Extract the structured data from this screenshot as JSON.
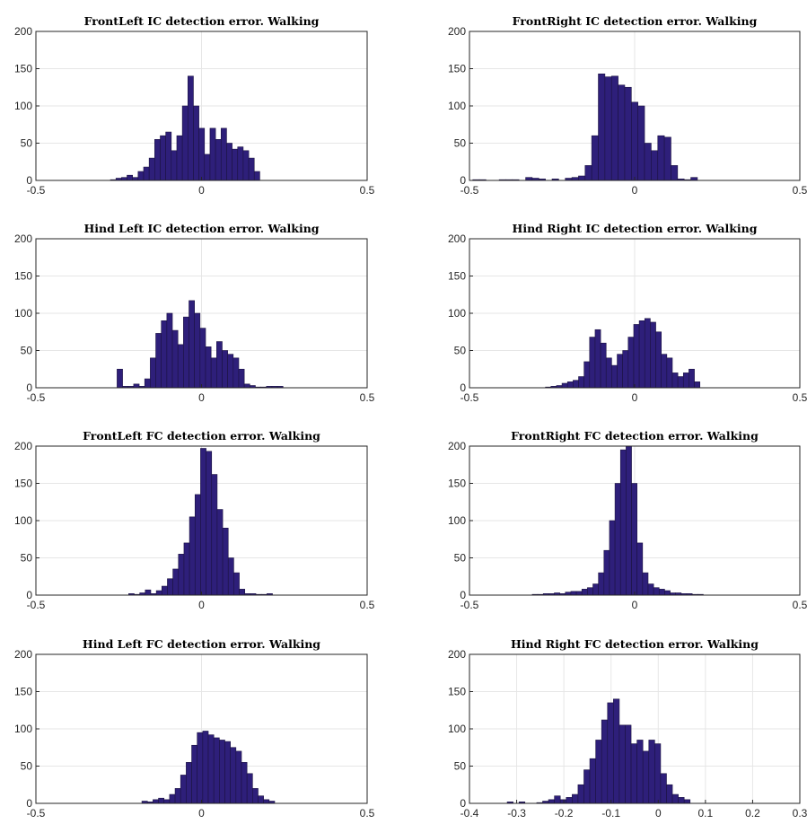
{
  "figure": {
    "colors": {
      "bar": "#2e1f7a",
      "bar_edge": "#1b1240",
      "grid": "#e6e6e6",
      "axis": "#262626"
    }
  },
  "chart_data": [
    {
      "type": "bar",
      "title": "FrontLeft IC detection error. Walking",
      "xlim": [
        -0.5,
        0.5
      ],
      "ylim": [
        0,
        200
      ],
      "xticks": [
        -0.5,
        0,
        0.5
      ],
      "xtick_labels": [
        "-0.5",
        "0",
        "0.5"
      ],
      "yticks": [
        0,
        50,
        100,
        150,
        200
      ],
      "ytick_labels": [
        "0",
        "50",
        "100",
        "150",
        "200"
      ],
      "grid": true,
      "bin_start": -0.275,
      "bin_width": 0.0167,
      "values": [
        1,
        3,
        4,
        7,
        4,
        12,
        18,
        30,
        55,
        60,
        65,
        40,
        60,
        100,
        140,
        100,
        70,
        35,
        70,
        55,
        70,
        50,
        42,
        45,
        40,
        30,
        12
      ]
    },
    {
      "type": "bar",
      "title": "FrontRight IC detection error. Walking",
      "xlim": [
        -0.5,
        0.5
      ],
      "ylim": [
        0,
        200
      ],
      "xticks": [
        -0.5,
        0,
        0.5
      ],
      "xtick_labels": [
        "-0.5",
        "0",
        "0.5"
      ],
      "yticks": [
        0,
        50,
        100,
        150,
        200
      ],
      "ytick_labels": [
        "0",
        "50",
        "100",
        "150",
        "200"
      ],
      "grid": true,
      "bin_start": -0.49,
      "bin_width": 0.02,
      "values": [
        1,
        1,
        0,
        0,
        1,
        1,
        1,
        0,
        4,
        3,
        2,
        0,
        2,
        0,
        3,
        4,
        6,
        20,
        60,
        143,
        139,
        140,
        128,
        125,
        105,
        100,
        50,
        40,
        60,
        58,
        20,
        2,
        1,
        4
      ]
    },
    {
      "type": "bar",
      "title": "Hind Left IC detection error. Walking",
      "xlim": [
        -0.5,
        0.5
      ],
      "ylim": [
        0,
        200
      ],
      "xticks": [
        -0.5,
        0,
        0.5
      ],
      "xtick_labels": [
        "-0.5",
        "0",
        "0.5"
      ],
      "yticks": [
        0,
        50,
        100,
        150,
        200
      ],
      "ytick_labels": [
        "0",
        "50",
        "100",
        "150",
        "200"
      ],
      "grid": true,
      "bin_start": -0.255,
      "bin_width": 0.0167,
      "values": [
        25,
        2,
        2,
        5,
        2,
        12,
        40,
        73,
        90,
        100,
        77,
        58,
        95,
        117,
        100,
        80,
        55,
        40,
        62,
        50,
        45,
        40,
        25,
        5,
        3,
        1,
        1,
        2,
        2,
        2
      ]
    },
    {
      "type": "bar",
      "title": "Hind Right IC detection error. Walking",
      "xlim": [
        -0.5,
        0.5
      ],
      "ylim": [
        0,
        200
      ],
      "xticks": [
        -0.5,
        0,
        0.5
      ],
      "xtick_labels": [
        "-0.5",
        "0",
        "0.5"
      ],
      "yticks": [
        0,
        50,
        100,
        150,
        200
      ],
      "ytick_labels": [
        "0",
        "50",
        "100",
        "150",
        "200"
      ],
      "grid": true,
      "bin_start": -0.27,
      "bin_width": 0.0167,
      "values": [
        1,
        2,
        3,
        6,
        8,
        10,
        15,
        35,
        68,
        78,
        60,
        40,
        30,
        45,
        50,
        68,
        85,
        90,
        93,
        88,
        75,
        45,
        40,
        20,
        15,
        20,
        25,
        8
      ]
    },
    {
      "type": "bar",
      "title": "FrontLeft FC detection error. Walking",
      "xlim": [
        -0.5,
        0.5
      ],
      "ylim": [
        0,
        200
      ],
      "xticks": [
        -0.5,
        0,
        0.5
      ],
      "xtick_labels": [
        "-0.5",
        "0",
        "0.5"
      ],
      "yticks": [
        0,
        50,
        100,
        150,
        200
      ],
      "ytick_labels": [
        "0",
        "50",
        "100",
        "150",
        "200"
      ],
      "grid": true,
      "bin_start": -0.22,
      "bin_width": 0.0167,
      "values": [
        2,
        1,
        3,
        7,
        2,
        6,
        12,
        22,
        35,
        55,
        70,
        105,
        135,
        197,
        193,
        162,
        115,
        90,
        50,
        30,
        8,
        2,
        2,
        1,
        1,
        2
      ]
    },
    {
      "type": "bar",
      "title": "FrontRight FC detection error. Walking",
      "xlim": [
        -0.5,
        0.5
      ],
      "ylim": [
        0,
        200
      ],
      "xticks": [
        -0.5,
        0,
        0.5
      ],
      "xtick_labels": [
        "-0.5",
        "0",
        "0.5"
      ],
      "yticks": [
        0,
        50,
        100,
        150,
        200
      ],
      "ytick_labels": [
        "0",
        "50",
        "100",
        "150",
        "200"
      ],
      "grid": true,
      "bin_start": -0.31,
      "bin_width": 0.0167,
      "values": [
        1,
        1,
        2,
        2,
        3,
        2,
        4,
        5,
        5,
        8,
        10,
        15,
        30,
        60,
        100,
        150,
        195,
        200,
        150,
        70,
        30,
        15,
        10,
        8,
        6,
        3,
        3,
        2,
        2,
        1,
        1
      ]
    },
    {
      "type": "bar",
      "title": "Hind Left FC detection error. Walking",
      "xlim": [
        -0.5,
        0.5
      ],
      "ylim": [
        0,
        200
      ],
      "xticks": [
        -0.5,
        0,
        0.5
      ],
      "xtick_labels": [
        "-0.5",
        "0",
        "0.5"
      ],
      "yticks": [
        0,
        50,
        100,
        150,
        200
      ],
      "ytick_labels": [
        "0",
        "50",
        "100",
        "150",
        "200"
      ],
      "grid": true,
      "bin_start": -0.18,
      "bin_width": 0.0167,
      "values": [
        3,
        2,
        5,
        7,
        5,
        12,
        20,
        38,
        55,
        78,
        95,
        97,
        92,
        88,
        85,
        83,
        75,
        70,
        55,
        40,
        20,
        10,
        5,
        3
      ]
    },
    {
      "type": "bar",
      "title": "Hind Right FC detection error. Walking",
      "xlim": [
        -0.4,
        0.3
      ],
      "ylim": [
        0,
        200
      ],
      "xticks": [
        -0.4,
        -0.3,
        -0.2,
        -0.1,
        0,
        0.1,
        0.2,
        0.3
      ],
      "xtick_labels": [
        "-0.4",
        "-0.3",
        "-0.2",
        "-0.1",
        "0",
        "0.1",
        "0.2",
        "0.3"
      ],
      "yticks": [
        0,
        50,
        100,
        150,
        200
      ],
      "ytick_labels": [
        "0",
        "50",
        "100",
        "150",
        "200"
      ],
      "grid": true,
      "bin_start": -0.32,
      "bin_width": 0.0125,
      "values": [
        2,
        0,
        2,
        0,
        0,
        1,
        3,
        5,
        10,
        5,
        8,
        12,
        25,
        45,
        60,
        85,
        112,
        135,
        140,
        105,
        105,
        80,
        85,
        70,
        85,
        80,
        40,
        25,
        12,
        8,
        5
      ]
    }
  ]
}
